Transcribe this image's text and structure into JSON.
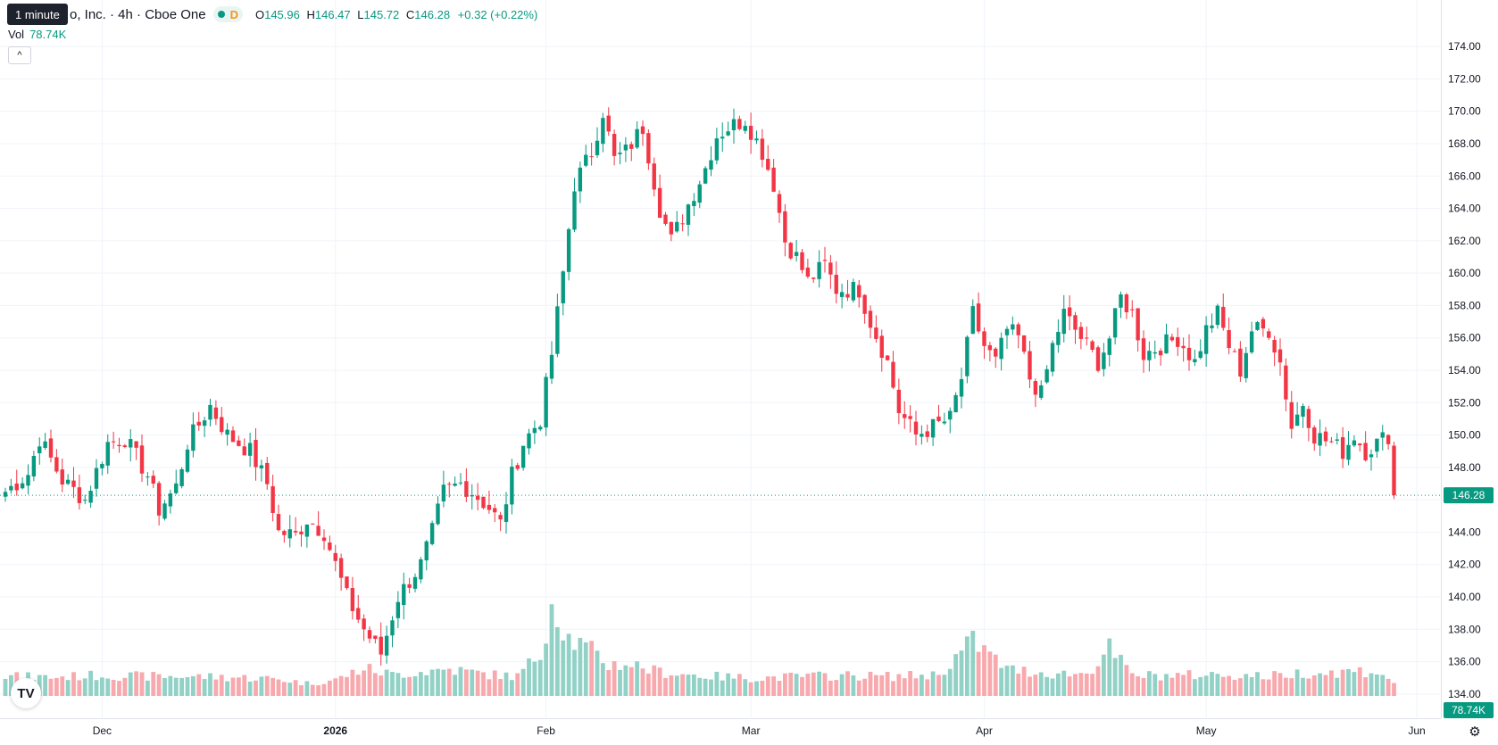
{
  "legend": {
    "title": "o, Inc. · 4h · Cboe One",
    "exchange_badge": "D",
    "open_label": "O",
    "open": "145.96",
    "high_label": "H",
    "high": "146.47",
    "low_label": "L",
    "low": "145.72",
    "close_label": "C",
    "close": "146.28",
    "change": "+0.32 (+0.22%)"
  },
  "tooltip": "1 minute",
  "volume_legend": {
    "label": "Vol",
    "value": "78.74K"
  },
  "colors": {
    "up": "#089981",
    "down": "#f23645",
    "up_vol": "#92d1c6",
    "down_vol": "#f7a9ae",
    "grid": "#f0f3fa",
    "axis_text": "#131722"
  },
  "icons": {
    "collapse": "chevron-up-icon",
    "logo": "tradingview-logo",
    "settings": "gear-icon"
  },
  "chart_data": {
    "type": "candlestick",
    "ylim": [
      133,
      175
    ],
    "y_ticks": [
      "134.00",
      "136.00",
      "138.00",
      "140.00",
      "142.00",
      "144.00",
      "146.00",
      "148.00",
      "150.00",
      "152.00",
      "154.00",
      "156.00",
      "158.00",
      "160.00",
      "162.00",
      "164.00",
      "166.00",
      "168.00",
      "170.00",
      "172.00",
      "174.00"
    ],
    "x_ticks": [
      {
        "label": "Dec",
        "index": 17,
        "bold": false
      },
      {
        "label": "2026",
        "index": 58,
        "bold": true
      },
      {
        "label": "Feb",
        "index": 95,
        "bold": false
      },
      {
        "label": "Mar",
        "index": 131,
        "bold": false
      },
      {
        "label": "Apr",
        "index": 172,
        "bold": false
      },
      {
        "label": "May",
        "index": 211,
        "bold": false
      },
      {
        "label": "Jun",
        "index": 248,
        "bold": false
      }
    ],
    "last_price": "146.28",
    "last_volume": "78.74K",
    "close_path": [
      [
        0,
        146.5
      ],
      [
        4,
        147.6
      ],
      [
        6,
        149.8
      ],
      [
        10,
        147.2
      ],
      [
        14,
        146.0
      ],
      [
        18,
        149.5
      ],
      [
        21,
        149.8
      ],
      [
        25,
        147.5
      ],
      [
        27,
        145.4
      ],
      [
        30,
        146.8
      ],
      [
        32,
        149.5
      ],
      [
        36,
        151.8
      ],
      [
        39,
        150.0
      ],
      [
        43,
        149.0
      ],
      [
        46,
        147.0
      ],
      [
        48,
        144.0
      ],
      [
        51,
        143.8
      ],
      [
        53,
        144.8
      ],
      [
        56,
        144.0
      ],
      [
        60,
        140.0
      ],
      [
        63,
        138.0
      ],
      [
        66,
        136.5
      ],
      [
        69,
        140.0
      ],
      [
        73,
        142.0
      ],
      [
        75,
        144.0
      ],
      [
        77,
        146.5
      ],
      [
        80,
        147.0
      ],
      [
        82,
        146.5
      ],
      [
        85,
        145.5
      ],
      [
        87,
        144.5
      ],
      [
        89,
        147.5
      ],
      [
        91,
        149.5
      ],
      [
        94,
        151.0
      ],
      [
        96,
        155.0
      ],
      [
        98,
        160.0
      ],
      [
        100,
        165.5
      ],
      [
        103,
        167.5
      ],
      [
        105,
        170.0
      ],
      [
        107,
        167.0
      ],
      [
        109,
        167.5
      ],
      [
        112,
        169.0
      ],
      [
        115,
        164.0
      ],
      [
        117,
        162.0
      ],
      [
        119,
        163.5
      ],
      [
        121,
        165.0
      ],
      [
        123,
        166.5
      ],
      [
        125,
        168.5
      ],
      [
        127,
        169.0
      ],
      [
        130,
        169.5
      ],
      [
        133,
        167.5
      ],
      [
        135,
        165.5
      ],
      [
        137,
        162.0
      ],
      [
        139,
        161.0
      ],
      [
        141,
        159.5
      ],
      [
        144,
        160.5
      ],
      [
        146,
        159.0
      ],
      [
        150,
        159.0
      ],
      [
        152,
        157.0
      ],
      [
        155,
        154.5
      ],
      [
        157,
        151.5
      ],
      [
        160,
        150.0
      ],
      [
        163,
        150.5
      ],
      [
        166,
        151.0
      ],
      [
        168,
        153.5
      ],
      [
        170,
        157.5
      ],
      [
        172,
        155.5
      ],
      [
        174,
        154.5
      ],
      [
        176,
        156.5
      ],
      [
        178,
        156.0
      ],
      [
        180,
        153.5
      ],
      [
        182,
        152.5
      ],
      [
        184,
        155.5
      ],
      [
        186,
        157.5
      ],
      [
        188,
        156.5
      ],
      [
        190,
        155.5
      ],
      [
        192,
        154.5
      ],
      [
        194,
        156.0
      ],
      [
        196,
        158.5
      ],
      [
        198,
        157.5
      ],
      [
        200,
        155.0
      ],
      [
        203,
        155.5
      ],
      [
        206,
        156.0
      ],
      [
        209,
        154.5
      ],
      [
        211,
        156.5
      ],
      [
        213,
        157.5
      ],
      [
        215,
        155.5
      ],
      [
        217,
        154.0
      ],
      [
        219,
        156.5
      ],
      [
        222,
        156.5
      ],
      [
        224,
        154.5
      ],
      [
        226,
        150.5
      ],
      [
        228,
        152.0
      ],
      [
        230,
        150.0
      ],
      [
        233,
        149.5
      ],
      [
        235,
        149.0
      ],
      [
        237,
        150.0
      ],
      [
        239,
        149.0
      ],
      [
        241,
        149.5
      ],
      [
        243,
        150.0
      ],
      [
        244,
        146.0
      ]
    ],
    "volume_profile": [
      [
        0,
        22
      ],
      [
        8,
        21
      ],
      [
        16,
        23
      ],
      [
        24,
        22
      ],
      [
        32,
        22
      ],
      [
        40,
        21
      ],
      [
        48,
        19
      ],
      [
        53,
        14
      ],
      [
        58,
        18
      ],
      [
        63,
        31
      ],
      [
        68,
        24
      ],
      [
        73,
        27
      ],
      [
        78,
        30
      ],
      [
        85,
        24
      ],
      [
        90,
        22
      ],
      [
        94,
        48
      ],
      [
        96,
        108
      ],
      [
        99,
        65
      ],
      [
        103,
        50
      ],
      [
        106,
        35
      ],
      [
        110,
        36
      ],
      [
        114,
        28
      ],
      [
        118,
        25
      ],
      [
        124,
        22
      ],
      [
        132,
        20
      ],
      [
        140,
        22
      ],
      [
        148,
        23
      ],
      [
        156,
        22
      ],
      [
        164,
        24
      ],
      [
        170,
        62
      ],
      [
        176,
        30
      ],
      [
        184,
        25
      ],
      [
        190,
        25
      ],
      [
        194,
        53
      ],
      [
        198,
        23
      ],
      [
        206,
        23
      ],
      [
        214,
        24
      ],
      [
        222,
        22
      ],
      [
        228,
        26
      ],
      [
        232,
        26
      ],
      [
        238,
        28
      ],
      [
        242,
        26
      ],
      [
        244,
        12
      ]
    ]
  }
}
